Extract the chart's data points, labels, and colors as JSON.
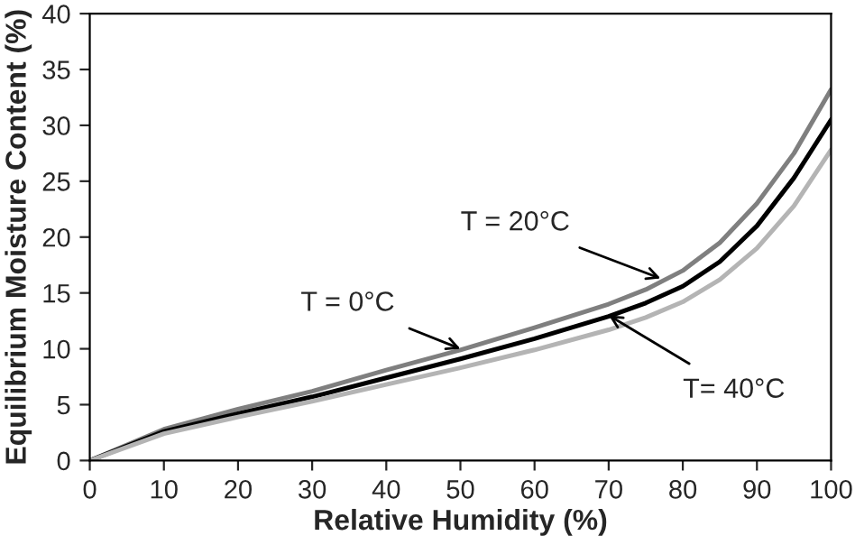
{
  "chart_data": {
    "type": "line",
    "xlabel": "Relative Humidity (%)",
    "ylabel": "Equilibrium Moisture Content (%)",
    "x": [
      0,
      10,
      20,
      30,
      40,
      50,
      60,
      70,
      75,
      80,
      85,
      90,
      95,
      100
    ],
    "series": [
      {
        "color": "#7f7f7f",
        "values": [
          0,
          2.8,
          4.6,
          6.2,
          8.1,
          9.9,
          11.9,
          14.0,
          15.3,
          17.0,
          19.5,
          23.0,
          27.5,
          33.2
        ]
      },
      {
        "color": "#000000",
        "values": [
          0,
          2.6,
          4.2,
          5.7,
          7.4,
          9.1,
          10.9,
          12.9,
          14.1,
          15.6,
          17.8,
          21.0,
          25.3,
          30.5
        ]
      },
      {
        "color": "#b4b4b4",
        "values": [
          0,
          2.4,
          3.9,
          5.3,
          6.8,
          8.3,
          9.9,
          11.7,
          12.8,
          14.2,
          16.2,
          19.0,
          22.8,
          27.8
        ]
      }
    ],
    "annotations": [
      {
        "text": "T = 0°C",
        "x": 50,
        "y": 10.0
      },
      {
        "text": "T = 20°C",
        "x": 77,
        "y": 16.3
      },
      {
        "text": "T= 40°C",
        "x": 70,
        "y": 13.0
      }
    ],
    "xlim": [
      0,
      100
    ],
    "ylim": [
      0,
      40
    ],
    "xticks": [
      0,
      10,
      20,
      30,
      40,
      50,
      60,
      70,
      80,
      90,
      100
    ],
    "yticks": [
      0,
      5,
      10,
      15,
      20,
      25,
      30,
      35,
      40
    ],
    "grid": false,
    "marker": "none",
    "line_style": "solid"
  }
}
